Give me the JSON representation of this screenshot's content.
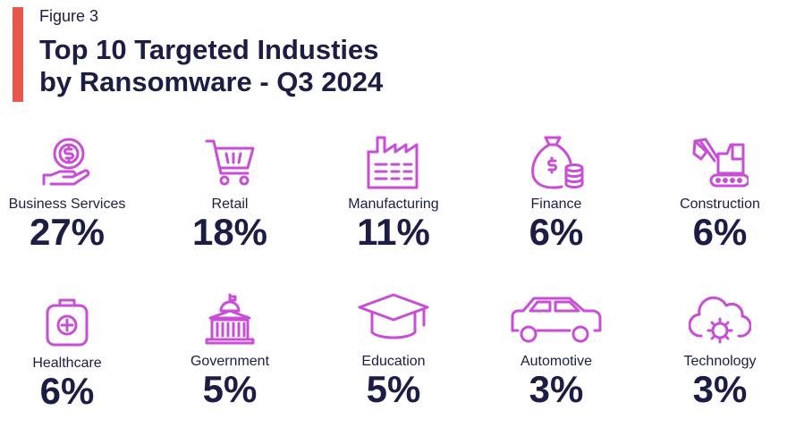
{
  "figure_label": "Figure 3",
  "title_line1": "Top 10 Targeted Industies",
  "title_line2": "by Ransomware - Q3 2024",
  "colors": {
    "accent": "#e8574a",
    "icon": "#c94dd6",
    "text": "#1b1d45"
  },
  "chart_data": {
    "type": "table",
    "title": "Top 10 Targeted Industies by Ransomware - Q3 2024",
    "categories": [
      "Business Services",
      "Retail",
      "Manufacturing",
      "Finance",
      "Construction",
      "Healthcare",
      "Government",
      "Education",
      "Automotive",
      "Technology"
    ],
    "values": [
      27,
      18,
      11,
      6,
      6,
      6,
      5,
      5,
      3,
      3
    ],
    "unit": "%",
    "items": [
      {
        "label": "Business Services",
        "value": "27%",
        "icon": "hand-coin-icon"
      },
      {
        "label": "Retail",
        "value": "18%",
        "icon": "shopping-cart-icon"
      },
      {
        "label": "Manufacturing",
        "value": "11%",
        "icon": "factory-icon"
      },
      {
        "label": "Finance",
        "value": "6%",
        "icon": "money-bag-icon"
      },
      {
        "label": "Construction",
        "value": "6%",
        "icon": "excavator-icon"
      },
      {
        "label": "Healthcare",
        "value": "6%",
        "icon": "medical-kit-icon"
      },
      {
        "label": "Government",
        "value": "5%",
        "icon": "government-building-icon"
      },
      {
        "label": "Education",
        "value": "5%",
        "icon": "graduation-cap-icon"
      },
      {
        "label": "Automotive",
        "value": "3%",
        "icon": "car-icon"
      },
      {
        "label": "Technology",
        "value": "3%",
        "icon": "cloud-gear-icon"
      }
    ]
  }
}
